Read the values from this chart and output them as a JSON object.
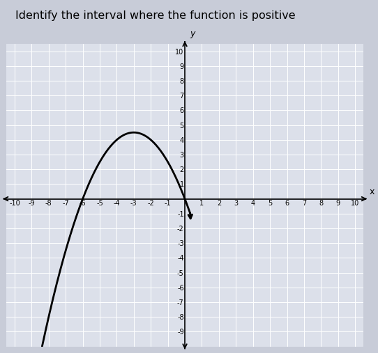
{
  "title": "Identify the interval where the function is positive",
  "title_fontsize": 11.5,
  "xlim": [
    -10.5,
    10.5
  ],
  "ylim": [
    -10,
    10.5
  ],
  "xticks": [
    -10,
    -9,
    -8,
    -7,
    -6,
    -5,
    -4,
    -3,
    -2,
    -1,
    1,
    2,
    3,
    4,
    5,
    6,
    7,
    8,
    9,
    10
  ],
  "yticks": [
    -9,
    -8,
    -7,
    -6,
    -5,
    -4,
    -3,
    -2,
    -1,
    1,
    2,
    3,
    4,
    5,
    6,
    7,
    8,
    9,
    10
  ],
  "xlabel": "x",
  "ylabel": "y",
  "plot_bg": "#dce0ea",
  "fig_bg": "#c8ccd8",
  "grid_color": "#ffffff",
  "axis_color": "#000000",
  "curve_color": "#000000",
  "curve_lw": 2.0,
  "a": -0.5,
  "root1": -6,
  "root2": 0,
  "x_start": -8.8,
  "x_end": 0.35
}
